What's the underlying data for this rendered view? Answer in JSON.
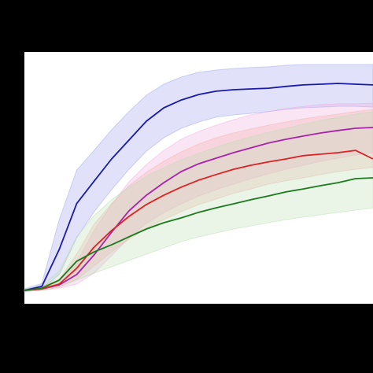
{
  "chart_data": {
    "type": "line",
    "title": "",
    "xlabel": "",
    "ylabel": "",
    "xlim": [
      0,
      100
    ],
    "ylim": [
      0,
      100
    ],
    "grid": false,
    "legend": "none",
    "x": [
      0,
      5,
      10,
      15,
      20,
      25,
      30,
      35,
      40,
      45,
      50,
      55,
      60,
      65,
      70,
      75,
      80,
      85,
      90,
      95,
      100
    ],
    "series": [
      {
        "color": "#1a1aa8",
        "band_color": "#9aa0ee",
        "values": [
          5.3,
          6.9,
          21.6,
          39.8,
          48.7,
          57.5,
          65.0,
          72.5,
          77.8,
          80.9,
          83.1,
          84.4,
          85.0,
          85.3,
          85.6,
          86.3,
          86.9,
          87.2,
          87.5,
          87.2,
          86.9
        ],
        "lower": [
          4.7,
          5.9,
          11.6,
          26.2,
          36.5,
          45.3,
          53.4,
          60.6,
          65.9,
          69.7,
          72.2,
          74.1,
          75.0,
          75.6,
          76.3,
          77.2,
          77.8,
          78.1,
          78.4,
          78.4,
          78.1
        ],
        "upper": [
          5.9,
          8.1,
          33.4,
          53.1,
          60.9,
          69.1,
          76.3,
          82.8,
          87.2,
          90.0,
          91.9,
          92.8,
          93.4,
          93.8,
          94.1,
          94.7,
          95.0,
          95.0,
          95.0,
          95.0,
          95.0
        ]
      },
      {
        "color": "#aa22aa",
        "band_color": "#eeaadd",
        "values": [
          5.3,
          5.9,
          7.5,
          11.6,
          19.4,
          28.4,
          36.9,
          43.1,
          48.1,
          52.5,
          55.6,
          57.8,
          60.0,
          61.9,
          63.8,
          65.3,
          66.6,
          67.8,
          68.8,
          69.7,
          70.0
        ],
        "lower": [
          5.0,
          5.3,
          6.2,
          7.8,
          12.2,
          19.1,
          26.2,
          31.9,
          36.2,
          39.7,
          42.8,
          45.3,
          47.5,
          49.7,
          51.6,
          53.4,
          55.0,
          56.6,
          57.8,
          59.1,
          60.0
        ],
        "upper": [
          5.6,
          6.6,
          9.4,
          16.3,
          29.1,
          39.4,
          48.4,
          55.3,
          60.9,
          65.3,
          68.4,
          70.9,
          73.1,
          75.0,
          76.3,
          77.5,
          78.4,
          79.1,
          79.4,
          79.4,
          79.7
        ]
      },
      {
        "color": "#dd2222",
        "band_color": "#f4b0a8",
        "values": [
          5.3,
          5.9,
          7.8,
          14.1,
          22.5,
          29.1,
          34.7,
          39.4,
          43.1,
          46.3,
          49.1,
          51.3,
          53.4,
          55.0,
          56.3,
          57.5,
          58.8,
          59.4,
          60.0,
          60.9,
          57.5
        ],
        "lower": [
          5.0,
          5.3,
          6.6,
          9.7,
          15.0,
          20.6,
          25.6,
          30.0,
          33.4,
          36.6,
          39.4,
          41.6,
          43.8,
          45.6,
          47.5,
          48.8,
          50.0,
          51.3,
          52.5,
          53.4,
          54.1
        ],
        "upper": [
          5.6,
          6.9,
          9.7,
          19.7,
          31.6,
          39.7,
          46.9,
          52.2,
          56.6,
          60.3,
          63.4,
          65.9,
          67.8,
          69.4,
          70.9,
          72.2,
          73.4,
          74.4,
          75.3,
          76.3,
          77.2
        ]
      },
      {
        "color": "#1b7a1b",
        "band_color": "#b8deb0",
        "values": [
          5.3,
          6.2,
          9.4,
          16.9,
          20.6,
          23.4,
          26.6,
          29.7,
          32.2,
          34.1,
          36.3,
          38.1,
          39.7,
          41.3,
          42.8,
          44.4,
          45.6,
          46.9,
          48.1,
          49.7,
          50.0
        ],
        "lower": [
          5.0,
          5.3,
          6.9,
          9.4,
          12.2,
          14.7,
          17.2,
          19.7,
          22.2,
          24.7,
          26.6,
          28.1,
          29.7,
          30.9,
          32.2,
          33.4,
          34.4,
          35.3,
          36.3,
          37.2,
          38.1
        ],
        "upper": [
          5.6,
          7.2,
          13.1,
          26.6,
          35.0,
          41.3,
          46.3,
          50.6,
          54.1,
          57.2,
          59.7,
          62.2,
          64.4,
          66.3,
          68.1,
          69.7,
          71.3,
          72.8,
          74.1,
          75.3,
          76.3
        ]
      }
    ]
  }
}
